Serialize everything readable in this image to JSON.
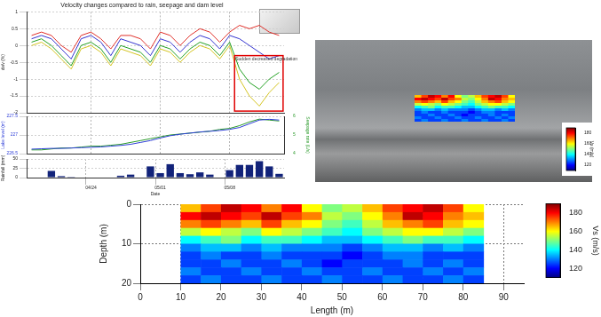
{
  "chart_data": [
    {
      "type": "line",
      "title": "Velocity changes compared to rain, seepage and dam level",
      "ylabel": "dv/v (%)",
      "categories": [
        null,
        null,
        null,
        null,
        null,
        null,
        "04/24",
        null,
        null,
        null,
        null,
        null,
        null,
        "05/01",
        null,
        null,
        null,
        null,
        null,
        null,
        "05/08",
        null,
        null,
        null,
        null,
        null
      ],
      "series": [
        {
          "color": "#e0302a",
          "values": [
            0.3,
            0.4,
            0.3,
            0.0,
            -0.2,
            0.3,
            0.4,
            0.2,
            -0.1,
            0.3,
            0.3,
            0.2,
            -0.1,
            0.4,
            0.3,
            0.0,
            0.3,
            0.5,
            0.4,
            0.1,
            0.4,
            0.6,
            0.5,
            0.6,
            0.4,
            0.3
          ]
        },
        {
          "color": "#3434d0",
          "values": [
            0.2,
            0.3,
            0.2,
            -0.1,
            -0.4,
            0.2,
            0.3,
            0.1,
            -0.3,
            0.2,
            0.1,
            0.0,
            -0.3,
            0.2,
            0.1,
            -0.2,
            0.1,
            0.3,
            0.2,
            -0.1,
            0.3,
            0.2,
            0.0,
            -0.2,
            -0.4,
            -0.3
          ]
        },
        {
          "color": "#22a022",
          "values": [
            0.1,
            0.2,
            0.0,
            -0.3,
            -0.6,
            0.0,
            0.1,
            -0.1,
            -0.5,
            0.0,
            -0.1,
            -0.2,
            -0.5,
            0.0,
            -0.1,
            -0.4,
            -0.1,
            0.1,
            0.0,
            -0.3,
            0.1,
            -0.7,
            -1.1,
            -1.3,
            -1.0,
            -0.8
          ]
        },
        {
          "color": "#d4c420",
          "values": [
            0.0,
            0.1,
            -0.1,
            -0.4,
            -0.7,
            -0.1,
            0.0,
            -0.2,
            -0.6,
            -0.1,
            -0.2,
            -0.3,
            -0.6,
            -0.1,
            -0.2,
            -0.5,
            -0.2,
            0.0,
            -0.1,
            -0.4,
            0.0,
            -1.0,
            -1.5,
            -1.8,
            -1.4,
            -1.1
          ]
        }
      ],
      "ylim": [
        -2,
        1
      ],
      "yticks": [
        -2,
        -1.5,
        -1,
        -0.5,
        0,
        0.5,
        1
      ],
      "grid": true,
      "tick_labels": "y",
      "annotations": [
        {
          "text": "Sudden decreased degradation",
          "box": {
            "x": [
              20.5,
              25.4
            ],
            "y": [
              -0.3,
              -1.95
            ]
          }
        }
      ]
    },
    {
      "type": "line",
      "ylabel": "Lake level (m)",
      "y2label": "Seepage rate (L/s)",
      "categories": [
        null,
        null,
        null,
        null,
        null,
        null,
        "04/24",
        null,
        null,
        null,
        null,
        null,
        null,
        "05/01",
        null,
        null,
        null,
        null,
        null,
        null,
        "05/08",
        null,
        null,
        null,
        null,
        null
      ],
      "series": [
        {
          "color": "#2f3fd8",
          "values": [
            226.62,
            226.63,
            226.64,
            226.64,
            226.65,
            226.66,
            226.67,
            226.68,
            226.7,
            226.72,
            226.75,
            226.8,
            226.85,
            226.92,
            226.98,
            227.02,
            227.05,
            227.08,
            227.1,
            227.12,
            227.15,
            227.2,
            227.3,
            227.4,
            227.42,
            227.4
          ]
        },
        {
          "color": "#2a9a2a",
          "axis": "y2",
          "values": [
            4.2,
            4.2,
            4.25,
            4.3,
            4.3,
            4.35,
            4.4,
            4.4,
            4.45,
            4.5,
            4.6,
            4.7,
            4.8,
            4.9,
            5.0,
            5.05,
            5.1,
            5.15,
            5.2,
            5.3,
            5.35,
            5.5,
            5.7,
            5.85,
            5.8,
            5.75
          ]
        }
      ],
      "ylim": [
        226.5,
        227.5
      ],
      "yticks": [
        226.5,
        227,
        227.5
      ],
      "y2lim": [
        4,
        6
      ],
      "y2ticks": [
        4,
        5,
        6
      ],
      "grid": true,
      "tick_labels": "y"
    },
    {
      "type": "bar",
      "xlabel": "Date",
      "ylabel": "Rainfall (mm)",
      "categories": [
        null,
        null,
        null,
        null,
        null,
        null,
        "04/24",
        null,
        null,
        null,
        null,
        null,
        null,
        "05/01",
        null,
        null,
        null,
        null,
        null,
        null,
        "05/08",
        null,
        null,
        null,
        null,
        null
      ],
      "values": [
        0,
        0,
        18,
        4,
        2,
        0,
        0,
        0,
        0,
        5,
        8,
        0,
        30,
        12,
        36,
        12,
        9,
        14,
        8,
        0,
        20,
        34,
        34,
        44,
        30,
        10
      ],
      "color": "#12237a",
      "ylim": [
        0,
        50
      ],
      "yticks": [
        0,
        25,
        50
      ],
      "grid": true
    },
    {
      "type": "heatmap",
      "xlabel": "Length (m)",
      "ylabel": "Depth (m)",
      "xlim": [
        0,
        95
      ],
      "xticks": [
        0,
        10,
        20,
        30,
        40,
        50,
        60,
        70,
        80,
        90
      ],
      "ylim": [
        20,
        0
      ],
      "yticks": [
        0,
        10,
        20
      ],
      "grid": true,
      "x": [
        12.5,
        17.5,
        22.5,
        27.5,
        32.5,
        37.5,
        42.5,
        47.5,
        52.5,
        57.5,
        62.5,
        67.5,
        72.5,
        77.5,
        82.5
      ],
      "y": [
        1,
        3,
        5,
        7,
        9,
        11,
        13,
        15,
        17,
        19
      ],
      "cells": [
        [
          165,
          175,
          185,
          180,
          170,
          180,
          160,
          150,
          155,
          165,
          175,
          180,
          185,
          175,
          160
        ],
        [
          180,
          185,
          180,
          175,
          185,
          175,
          170,
          155,
          150,
          160,
          170,
          185,
          180,
          170,
          165
        ],
        [
          170,
          175,
          170,
          165,
          175,
          165,
          160,
          150,
          145,
          155,
          165,
          170,
          175,
          165,
          160
        ],
        [
          155,
          160,
          155,
          150,
          160,
          155,
          150,
          145,
          140,
          150,
          155,
          160,
          160,
          155,
          150
        ],
        [
          140,
          145,
          150,
          140,
          145,
          145,
          140,
          135,
          135,
          140,
          145,
          150,
          145,
          145,
          140
        ],
        [
          130,
          135,
          135,
          130,
          135,
          130,
          130,
          130,
          125,
          130,
          135,
          135,
          130,
          135,
          130
        ],
        [
          125,
          130,
          125,
          125,
          130,
          125,
          125,
          125,
          120,
          125,
          130,
          130,
          125,
          125,
          125
        ],
        [
          125,
          125,
          130,
          125,
          125,
          130,
          125,
          120,
          125,
          125,
          125,
          130,
          125,
          130,
          125
        ],
        [
          130,
          125,
          125,
          130,
          125,
          125,
          130,
          125,
          125,
          130,
          125,
          125,
          130,
          125,
          130
        ],
        [
          125,
          130,
          125,
          125,
          130,
          125,
          125,
          130,
          125,
          125,
          130,
          125,
          125,
          130,
          125
        ]
      ],
      "colorbar": {
        "label": "Vs (m/s)",
        "range": [
          110,
          190
        ],
        "ticks": [
          120,
          140,
          160,
          180
        ]
      }
    }
  ]
}
